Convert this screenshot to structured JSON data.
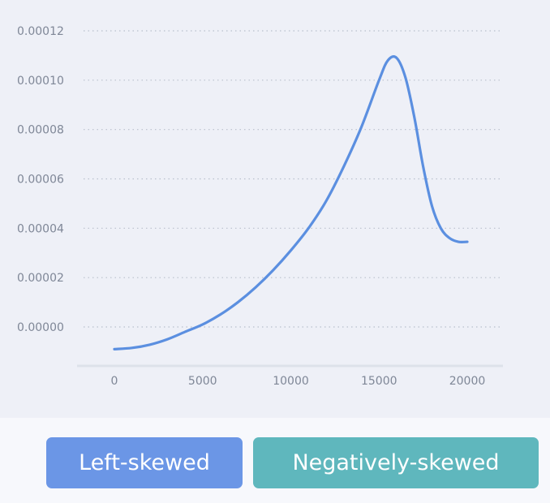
{
  "chart_data": {
    "type": "line",
    "x": [
      0,
      1000,
      2000,
      3000,
      4000,
      5000,
      6000,
      7000,
      8000,
      9000,
      10000,
      11000,
      12000,
      13000,
      14000,
      15000,
      15500,
      16000,
      16500,
      17000,
      17500,
      18000,
      18500,
      19000,
      19500,
      20000
    ],
    "y": [
      -9e-06,
      -8.5e-06,
      -7.2e-06,
      -5e-06,
      -2e-06,
      1e-06,
      5e-06,
      1e-05,
      1.6e-05,
      2.3e-05,
      3.1e-05,
      4e-05,
      5.1e-05,
      6.5e-05,
      8.1e-05,
      0.0001,
      0.000108,
      0.000109,
      0.000101,
      8.5e-05,
      6.5e-05,
      4.9e-05,
      4e-05,
      3.6e-05,
      3.45e-05,
      3.45e-05
    ],
    "xticks": [
      "0",
      "5000",
      "10000",
      "15000",
      "20000"
    ],
    "yticks": [
      "0.00000",
      "0.00002",
      "0.00004",
      "0.00006",
      "0.00008",
      "0.00010",
      "0.00012"
    ],
    "xlim": [
      -2000,
      22000
    ],
    "ylim": [
      -1.6e-05,
      0.00012
    ],
    "grid": "horizontal-dotted",
    "line_color": "#5b8fe0"
  },
  "answers": {
    "left_label": "Left-skewed",
    "neg_label": "Negatively-skewed"
  }
}
